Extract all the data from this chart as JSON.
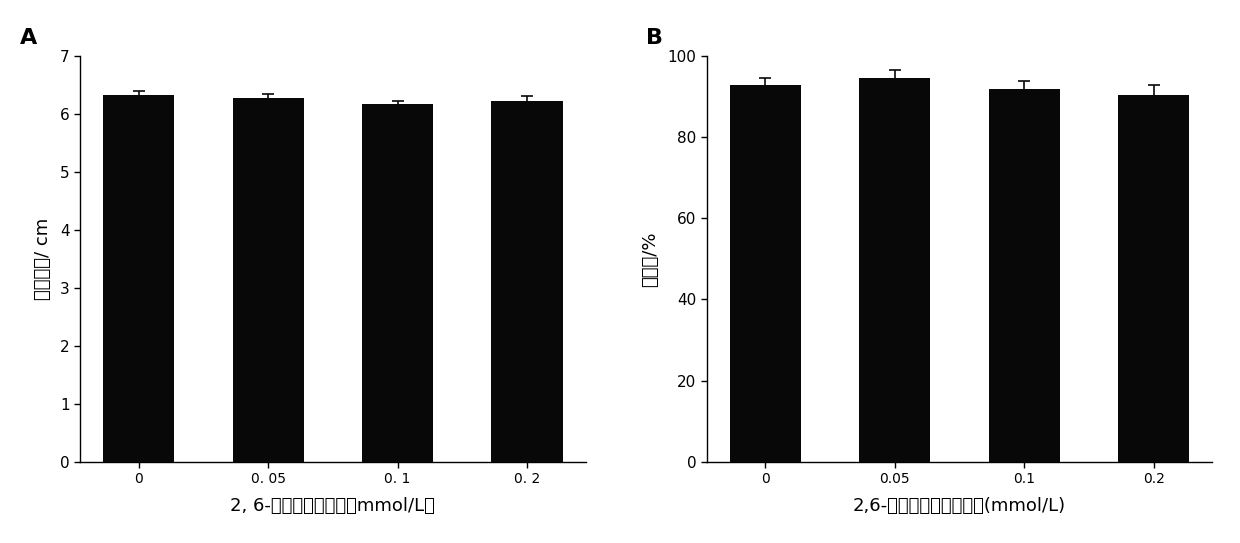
{
  "panel_A": {
    "categories": [
      "0",
      "0. 05",
      "0. 1",
      "0. 2"
    ],
    "values": [
      6.33,
      6.28,
      6.18,
      6.22
    ],
    "errors": [
      0.06,
      0.07,
      0.05,
      0.1
    ],
    "ylabel": "菌落直径/ cm",
    "xlabel": "2, 6-二叔丁基对甲酚（mmol/L）",
    "ylim": [
      0,
      7
    ],
    "yticks": [
      0,
      1,
      2,
      3,
      4,
      5,
      6,
      7
    ],
    "label": "A"
  },
  "panel_B": {
    "categories": [
      "0",
      "0.05",
      "0.1",
      "0.2"
    ],
    "values": [
      93.0,
      94.5,
      92.0,
      90.5
    ],
    "errors": [
      1.5,
      2.0,
      1.8,
      2.5
    ],
    "ylabel": "萌发率/%",
    "xlabel": "2,6-二叔丁基对甲酚浓度(mmol/L)",
    "ylim": [
      0,
      100
    ],
    "yticks": [
      0,
      20,
      40,
      60,
      80,
      100
    ],
    "label": "B"
  },
  "bar_color": "#080808",
  "bar_width": 0.55,
  "error_color": "#080808",
  "bg_color": "#ffffff",
  "label_fontsize": 13,
  "tick_fontsize": 11,
  "panel_label_fontsize": 16
}
